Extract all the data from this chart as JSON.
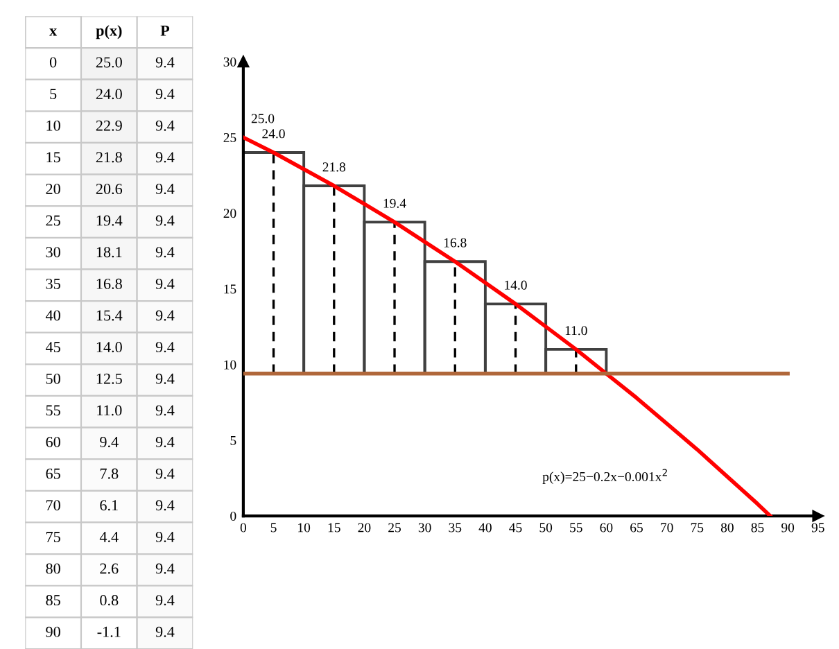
{
  "chart_data": [
    {
      "type": "heatmap",
      "ylabel": "x",
      "data_labels": true,
      "categories": [
        "p(x)",
        "P"
      ],
      "y_categories": [
        "0",
        "5",
        "10",
        "15",
        "20",
        "25",
        "30",
        "35",
        "40",
        "45",
        "50",
        "55",
        "60",
        "65",
        "70",
        "75",
        "80",
        "85",
        "90"
      ],
      "cells": [
        [
          25.0,
          9.4
        ],
        [
          24.0,
          9.4
        ],
        [
          22.9,
          9.4
        ],
        [
          21.8,
          9.4
        ],
        [
          20.6,
          9.4
        ],
        [
          19.4,
          9.4
        ],
        [
          18.1,
          9.4
        ],
        [
          16.8,
          9.4
        ],
        [
          15.4,
          9.4
        ],
        [
          14.0,
          9.4
        ],
        [
          12.5,
          9.4
        ],
        [
          11.0,
          9.4
        ],
        [
          9.4,
          9.4
        ],
        [
          7.8,
          9.4
        ],
        [
          6.1,
          9.4
        ],
        [
          4.4,
          9.4
        ],
        [
          2.6,
          9.4
        ],
        [
          0.8,
          9.4
        ],
        [
          -1.1,
          9.4
        ]
      ],
      "cell_labels": [
        [
          "25.0",
          "9.4"
        ],
        [
          "24.0",
          "9.4"
        ],
        [
          "22.9",
          "9.4"
        ],
        [
          "21.8",
          "9.4"
        ],
        [
          "20.6",
          "9.4"
        ],
        [
          "19.4",
          "9.4"
        ],
        [
          "18.1",
          "9.4"
        ],
        [
          "16.8",
          "9.4"
        ],
        [
          "15.4",
          "9.4"
        ],
        [
          "14.0",
          "9.4"
        ],
        [
          "12.5",
          "9.4"
        ],
        [
          "11.0",
          "9.4"
        ],
        [
          "9.4",
          "9.4"
        ],
        [
          "7.8",
          "9.4"
        ],
        [
          "6.1",
          "9.4"
        ],
        [
          "4.4",
          "9.4"
        ],
        [
          "2.6",
          "9.4"
        ],
        [
          "0.8",
          "9.4"
        ],
        [
          "-1.1",
          "9.4"
        ]
      ]
    },
    {
      "type": "line",
      "xlim": [
        0,
        95
      ],
      "ylim": [
        0,
        30
      ],
      "xticks": [
        0,
        5,
        10,
        15,
        20,
        25,
        30,
        35,
        40,
        45,
        50,
        55,
        60,
        65,
        70,
        75,
        80,
        85,
        90,
        95
      ],
      "yticks": [
        0,
        5,
        10,
        15,
        20,
        25,
        30
      ],
      "grid": false,
      "legend": false,
      "series": [
        {
          "type": "bar",
          "x": [
            5,
            15,
            25,
            35,
            45,
            55
          ],
          "base": [
            9.4,
            9.4,
            9.4,
            9.4,
            9.4,
            9.4
          ],
          "values": [
            14.6,
            12.4,
            10.0,
            7.4,
            4.6,
            1.6
          ],
          "color": "#404040"
        },
        {
          "type": "line",
          "line_style": "dashed",
          "color": "#000000",
          "x": [
            5,
            5
          ],
          "values": [
            9.4,
            24.0
          ]
        },
        {
          "type": "line",
          "line_style": "dashed",
          "color": "#000000",
          "x": [
            15,
            15
          ],
          "values": [
            9.4,
            21.8
          ]
        },
        {
          "type": "line",
          "line_style": "dashed",
          "color": "#000000",
          "x": [
            25,
            25
          ],
          "values": [
            9.4,
            19.4
          ]
        },
        {
          "type": "line",
          "line_style": "dashed",
          "color": "#000000",
          "x": [
            35,
            35
          ],
          "values": [
            9.4,
            16.8
          ]
        },
        {
          "type": "line",
          "line_style": "dashed",
          "color": "#000000",
          "x": [
            45,
            45
          ],
          "values": [
            9.4,
            14.0
          ]
        },
        {
          "type": "line",
          "line_style": "dashed",
          "color": "#000000",
          "x": [
            55,
            55
          ],
          "values": [
            9.4,
            11.0
          ]
        },
        {
          "type": "line",
          "color": "#ff0000",
          "x": [
            0,
            5,
            10,
            15,
            20,
            25,
            30,
            35,
            40,
            45,
            50,
            55,
            60,
            65,
            70,
            75,
            80,
            85,
            87.1
          ],
          "values": [
            25.0,
            24.0,
            22.9,
            21.8,
            20.6,
            19.4,
            18.1,
            16.8,
            15.4,
            14.0,
            12.5,
            11.0,
            9.4,
            7.8,
            6.1,
            4.4,
            2.6,
            0.8,
            0
          ]
        },
        {
          "type": "line",
          "color": "#b0673a",
          "x": [
            0,
            90
          ],
          "values": [
            9.4,
            9.4
          ]
        }
      ],
      "annotations": [
        {
          "text": "25.0",
          "x": 0,
          "y": 25.0
        },
        {
          "text": "24.0",
          "x": 5,
          "y": 24.0
        },
        {
          "text": "21.8",
          "x": 15,
          "y": 21.8
        },
        {
          "text": "19.4",
          "x": 25,
          "y": 19.4
        },
        {
          "text": "16.8",
          "x": 35,
          "y": 16.8
        },
        {
          "text": "14.0",
          "x": 45,
          "y": 14.0
        },
        {
          "text": "11.0",
          "x": 55,
          "y": 11.0
        },
        "p(x)=25−0.2x−0.001x$^{2}$"
      ]
    }
  ]
}
